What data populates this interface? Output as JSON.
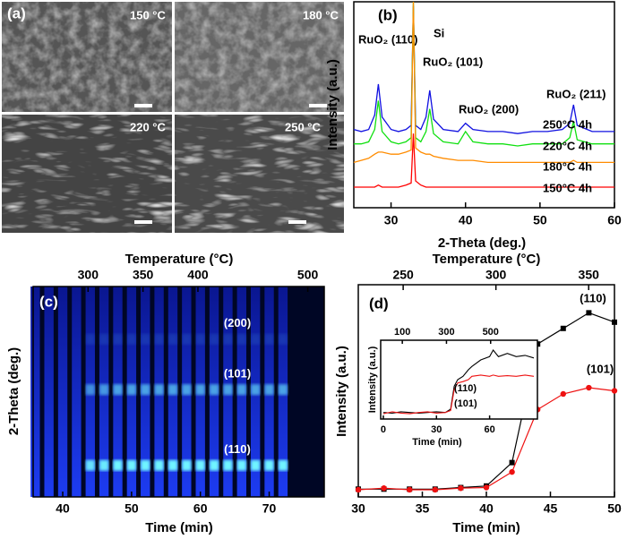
{
  "chart_data": [
    {
      "type": "image",
      "panel_label": "(a)",
      "labels": [
        "150 °C",
        "180 °C",
        "220 °C",
        "250 °C"
      ]
    },
    {
      "type": "line",
      "panel_label": "(b)",
      "xlabel": "2-Theta (deg.)",
      "ylabel": "Intensity (a.u.)",
      "xlim": [
        25,
        60
      ],
      "xticks": [
        30,
        40,
        50,
        60
      ],
      "ylim": [
        0,
        100
      ],
      "annotations": [
        "RuO₂ (110)",
        "Si",
        "RuO₂ (101)",
        "RuO₂ (200)",
        "RuO₂ (211)"
      ],
      "x": [
        25,
        26,
        27,
        27.8,
        28.3,
        28.8,
        30,
        31,
        32,
        32.7,
        33,
        33.3,
        34,
        34.7,
        35.2,
        35.7,
        37,
        39,
        40,
        41,
        43,
        45,
        47,
        49,
        51,
        53,
        54,
        54.5,
        55,
        57,
        59,
        60
      ],
      "series": [
        {
          "name": "250°C 4h",
          "color": "#1010e0",
          "values": [
            38,
            37,
            38,
            45,
            60,
            44,
            38,
            37,
            38,
            40,
            98,
            40,
            38,
            44,
            57,
            43,
            38,
            37,
            41,
            38,
            37,
            37,
            36,
            37,
            37,
            38,
            41,
            50,
            40,
            37,
            37,
            37
          ]
        },
        {
          "name": "220°C 4h",
          "color": "#10e010",
          "values": [
            31,
            31,
            32,
            38,
            52,
            37,
            32,
            31,
            32,
            34,
            100,
            34,
            32,
            37,
            48,
            36,
            32,
            31,
            37,
            32,
            31,
            31,
            30,
            31,
            31,
            31,
            34,
            42,
            33,
            31,
            31,
            31
          ]
        },
        {
          "name": "180°C 4h",
          "color": "#ff8c00",
          "values": [
            22,
            23,
            24,
            26,
            27,
            27,
            26,
            26,
            27,
            28,
            100,
            29,
            27,
            26,
            26,
            25,
            24,
            23,
            23,
            23,
            22,
            22,
            22,
            22,
            22,
            22,
            22,
            23,
            22,
            22,
            22,
            22
          ]
        },
        {
          "name": "150°C 4h",
          "color": "#ff0000",
          "values": [
            10,
            10,
            10,
            10,
            11,
            10,
            10,
            10,
            11,
            12,
            36,
            13,
            11,
            10,
            10,
            10,
            10,
            10,
            10,
            10,
            10,
            10,
            10,
            10,
            10,
            10,
            10,
            10,
            10,
            10,
            10,
            10
          ]
        }
      ]
    },
    {
      "type": "heatmap",
      "panel_label": "(c)",
      "xlabel": "Time (min)",
      "ylabel": "2-Theta (deg.)",
      "x2label": "Temperature (°C)",
      "xlim": [
        35.7,
        78
      ],
      "xticks": [
        40,
        50,
        60,
        70
      ],
      "x2lim": [
        250,
        515
      ],
      "x2ticks": [
        300,
        350,
        400,
        500
      ],
      "ylim": [
        25,
        45
      ],
      "x": [
        36,
        38,
        40,
        42,
        44,
        46,
        48,
        50,
        52,
        54,
        56,
        58,
        60,
        62,
        64,
        66,
        68,
        70,
        72
      ],
      "series": [
        {
          "name": "(200)",
          "two_theta": 40,
          "values": [
            0,
            0,
            0,
            0,
            0.1,
            0.1,
            0.1,
            0.1,
            0.1,
            0.1,
            0.1,
            0.1,
            0.1,
            0.1,
            0.1,
            0.1,
            0.1,
            0.1,
            0.1
          ]
        },
        {
          "name": "(101)",
          "two_theta": 35.2,
          "values": [
            0,
            0,
            0,
            0,
            0.5,
            0.55,
            0.6,
            0.6,
            0.6,
            0.6,
            0.6,
            0.6,
            0.6,
            0.6,
            0.6,
            0.6,
            0.6,
            0.6,
            0.6
          ]
        },
        {
          "name": "(110)",
          "two_theta": 28,
          "values": [
            0,
            0,
            0,
            0,
            0.9,
            0.95,
            1,
            1,
            1,
            1,
            1,
            1,
            1,
            1,
            1,
            1,
            1,
            1,
            1
          ]
        }
      ]
    },
    {
      "type": "line",
      "panel_label": "(d)",
      "xlabel": "Time (min)",
      "ylabel": "Intensity (a.u.)",
      "x2label": "Temperature (°C)",
      "xlim": [
        30,
        50
      ],
      "xticks": [
        30,
        35,
        40,
        45,
        50
      ],
      "x2lim": [
        225.8,
        363.9
      ],
      "x2ticks": [
        250,
        300,
        350
      ],
      "ylim": [
        -2,
        66
      ],
      "markers": true,
      "x": [
        30,
        32,
        34,
        36,
        38,
        40,
        42,
        44,
        46,
        48,
        50
      ],
      "series": [
        {
          "name": "(110)",
          "color": "#000000",
          "marker": "square",
          "values": [
            0.5,
            0.5,
            0.5,
            0.5,
            1,
            1.5,
            9,
            47,
            52,
            57,
            54
          ]
        },
        {
          "name": "(101)",
          "color": "#ee1111",
          "marker": "circle",
          "values": [
            0.3,
            0.8,
            0.3,
            0.3,
            0.8,
            1,
            6,
            26,
            31,
            33,
            32
          ]
        }
      ]
    },
    {
      "type": "line",
      "xlabel": "Time (min)",
      "ylabel": "Intensity (a.u.)",
      "xlim": [
        -1.5,
        87
      ],
      "xticks": [
        0,
        30,
        60
      ],
      "x2lim": [
        2,
        712
      ],
      "x2ticks": [
        100,
        300,
        500
      ],
      "ylim": [
        -0.05,
        1.15
      ],
      "x": [
        0,
        5,
        10,
        15,
        20,
        25,
        30,
        35,
        38,
        40,
        42,
        45,
        48,
        50,
        55,
        60,
        62,
        65,
        70,
        75,
        80,
        85
      ],
      "series": [
        {
          "name": "(110)",
          "color": "#000000",
          "values": [
            0.05,
            0.04,
            0.06,
            0.05,
            0.04,
            0.05,
            0.06,
            0.05,
            0.1,
            0.45,
            0.55,
            0.6,
            0.7,
            0.75,
            0.85,
            0.9,
            1.0,
            0.9,
            0.95,
            0.9,
            0.92,
            0.88
          ]
        },
        {
          "name": "(101)",
          "color": "#ee1111",
          "values": [
            0.03,
            0.06,
            0.04,
            0.03,
            0.05,
            0.06,
            0.04,
            0.05,
            0.08,
            0.4,
            0.5,
            0.52,
            0.55,
            0.6,
            0.62,
            0.6,
            0.62,
            0.6,
            0.61,
            0.6,
            0.62,
            0.6
          ]
        }
      ]
    }
  ]
}
